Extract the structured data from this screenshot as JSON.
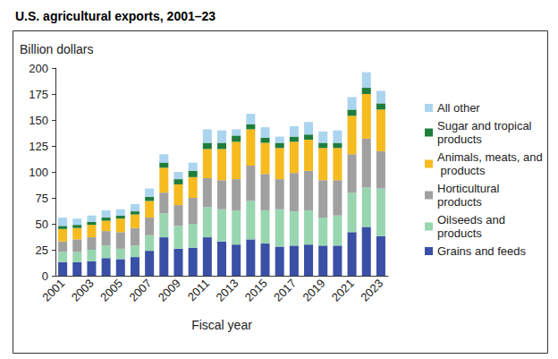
{
  "chart_data": {
    "type": "bar",
    "title": "U.S. agricultural exports, 2001–23",
    "y_label": "Billion dollars",
    "x_label": "Fiscal year",
    "stacked": true,
    "grid": false,
    "legend": "right",
    "categories": [
      "2001",
      null,
      "2003",
      null,
      "2005",
      null,
      "2007",
      null,
      "2009",
      null,
      "2011",
      null,
      "2013",
      null,
      "2015",
      null,
      "2017",
      null,
      "2019",
      null,
      "2021",
      null,
      "2023"
    ],
    "ylim": [
      0,
      200
    ],
    "yticks": [
      0,
      25,
      50,
      75,
      100,
      125,
      150,
      175,
      200
    ],
    "series": [
      {
        "name": "Grains and feeds",
        "color": "#3a4fa6",
        "values": [
          13,
          13,
          14,
          17,
          16,
          18,
          24,
          37,
          26,
          27,
          37,
          33,
          30,
          35,
          31,
          28,
          29,
          30,
          29,
          29,
          42,
          47,
          38
        ]
      },
      {
        "name": "Oilseeds and products",
        "color": "#98d6b0",
        "values": [
          10,
          10,
          11,
          12,
          10,
          11,
          15,
          23,
          22,
          23,
          29,
          31,
          33,
          37,
          32,
          36,
          33,
          33,
          27,
          29,
          38,
          38,
          46
        ]
      },
      {
        "name": "Horticultural products",
        "color": "#a0a0a0",
        "values": [
          10,
          12,
          12,
          14,
          16,
          17,
          17,
          20,
          20,
          25,
          28,
          28,
          30,
          34,
          35,
          29,
          37,
          38,
          36,
          34,
          37,
          47,
          36
        ]
      },
      {
        "name": "Animals, meats, and products",
        "color": "#f6bb1f",
        "values": [
          12,
          11,
          12,
          10,
          13,
          13,
          16,
          24,
          20,
          20,
          28,
          30,
          36,
          35,
          30,
          30,
          30,
          30,
          31,
          31,
          37,
          43,
          40
        ]
      },
      {
        "name": "Sugar and tropical products",
        "color": "#1f7d3c",
        "values": [
          3,
          3,
          3,
          3,
          3,
          3,
          4,
          5,
          5,
          6,
          6,
          6,
          6,
          5,
          5,
          5,
          5,
          5,
          5,
          5,
          6,
          6,
          6
        ]
      },
      {
        "name": "All other",
        "color": "#abd5ef",
        "values": [
          8,
          6,
          6,
          7,
          6,
          7,
          8,
          8,
          7,
          8,
          13,
          12,
          6,
          10,
          10,
          6,
          10,
          12,
          11,
          12,
          12,
          15,
          12
        ]
      }
    ]
  }
}
